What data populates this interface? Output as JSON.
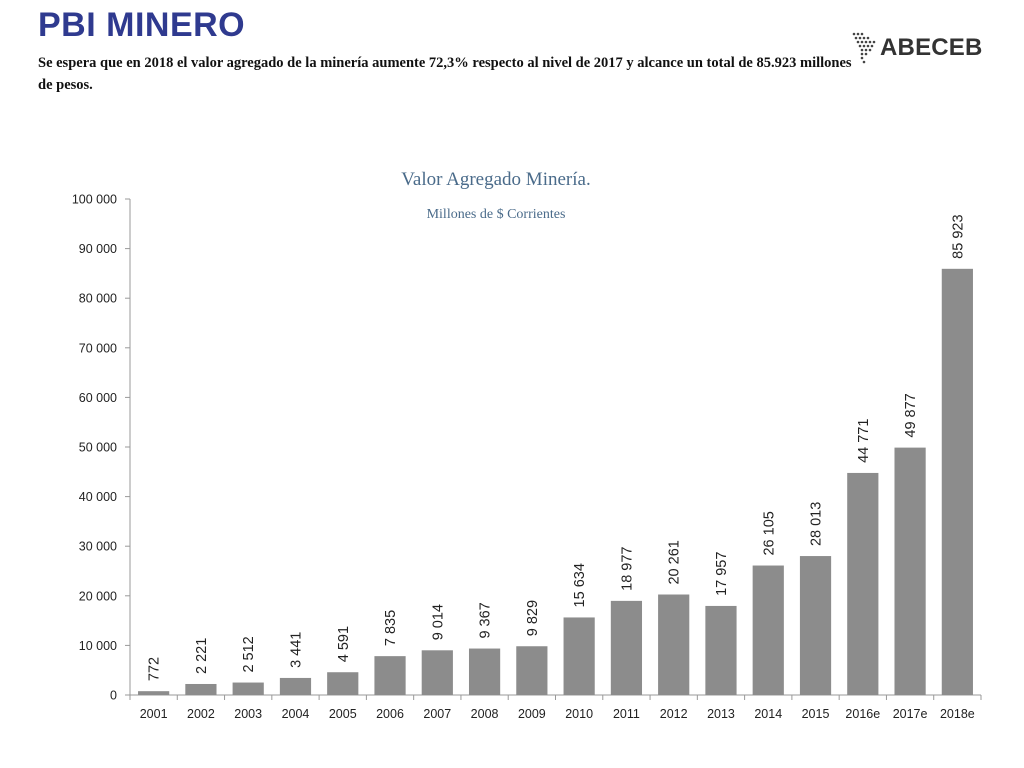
{
  "header": {
    "title": "PBI MINERO",
    "subtitle": "Se espera que en 2018 el valor agregado de la minería aumente 72,3% respecto al nivel de 2017 y alcance  un total de 85.923 millones de pesos."
  },
  "logo": {
    "text": "ABECEB",
    "icon": "south-america-dots-icon"
  },
  "colors": {
    "title": "#2f3a8f",
    "bar": "#8c8c8c",
    "chart_title": "#4a6b8a",
    "axis": "#999999"
  },
  "chart_data": {
    "type": "bar",
    "title": "Valor Agregado Minería.",
    "subtitle": "Millones de $ Corrientes",
    "xlabel": "",
    "ylabel": "",
    "categories": [
      "2001",
      "2002",
      "2003",
      "2004",
      "2005",
      "2006",
      "2007",
      "2008",
      "2009",
      "2010",
      "2011",
      "2012",
      "2013",
      "2014",
      "2015",
      "2016e",
      "2017e",
      "2018e"
    ],
    "values": [
      772,
      2221,
      2512,
      3441,
      4591,
      7835,
      9014,
      9367,
      9829,
      15634,
      18977,
      20261,
      17957,
      26105,
      28013,
      44771,
      49877,
      85923
    ],
    "data_labels": [
      "772",
      "2 221",
      "2 512",
      "3 441",
      "4 591",
      "7 835",
      "9 014",
      "9 367",
      "9 829",
      "15 634",
      "18 977",
      "20 261",
      "17 957",
      "26 105",
      "28 013",
      "44 771",
      "49 877",
      "85 923"
    ],
    "ylim": [
      0,
      100000
    ],
    "yticks": [
      0,
      10000,
      20000,
      30000,
      40000,
      50000,
      60000,
      70000,
      80000,
      90000,
      100000
    ],
    "ytick_labels": [
      "0",
      "10 000",
      "20 000",
      "30 000",
      "40 000",
      "50 000",
      "60 000",
      "70 000",
      "80 000",
      "90 000",
      "100 000"
    ],
    "grid": false,
    "legend": "none"
  }
}
